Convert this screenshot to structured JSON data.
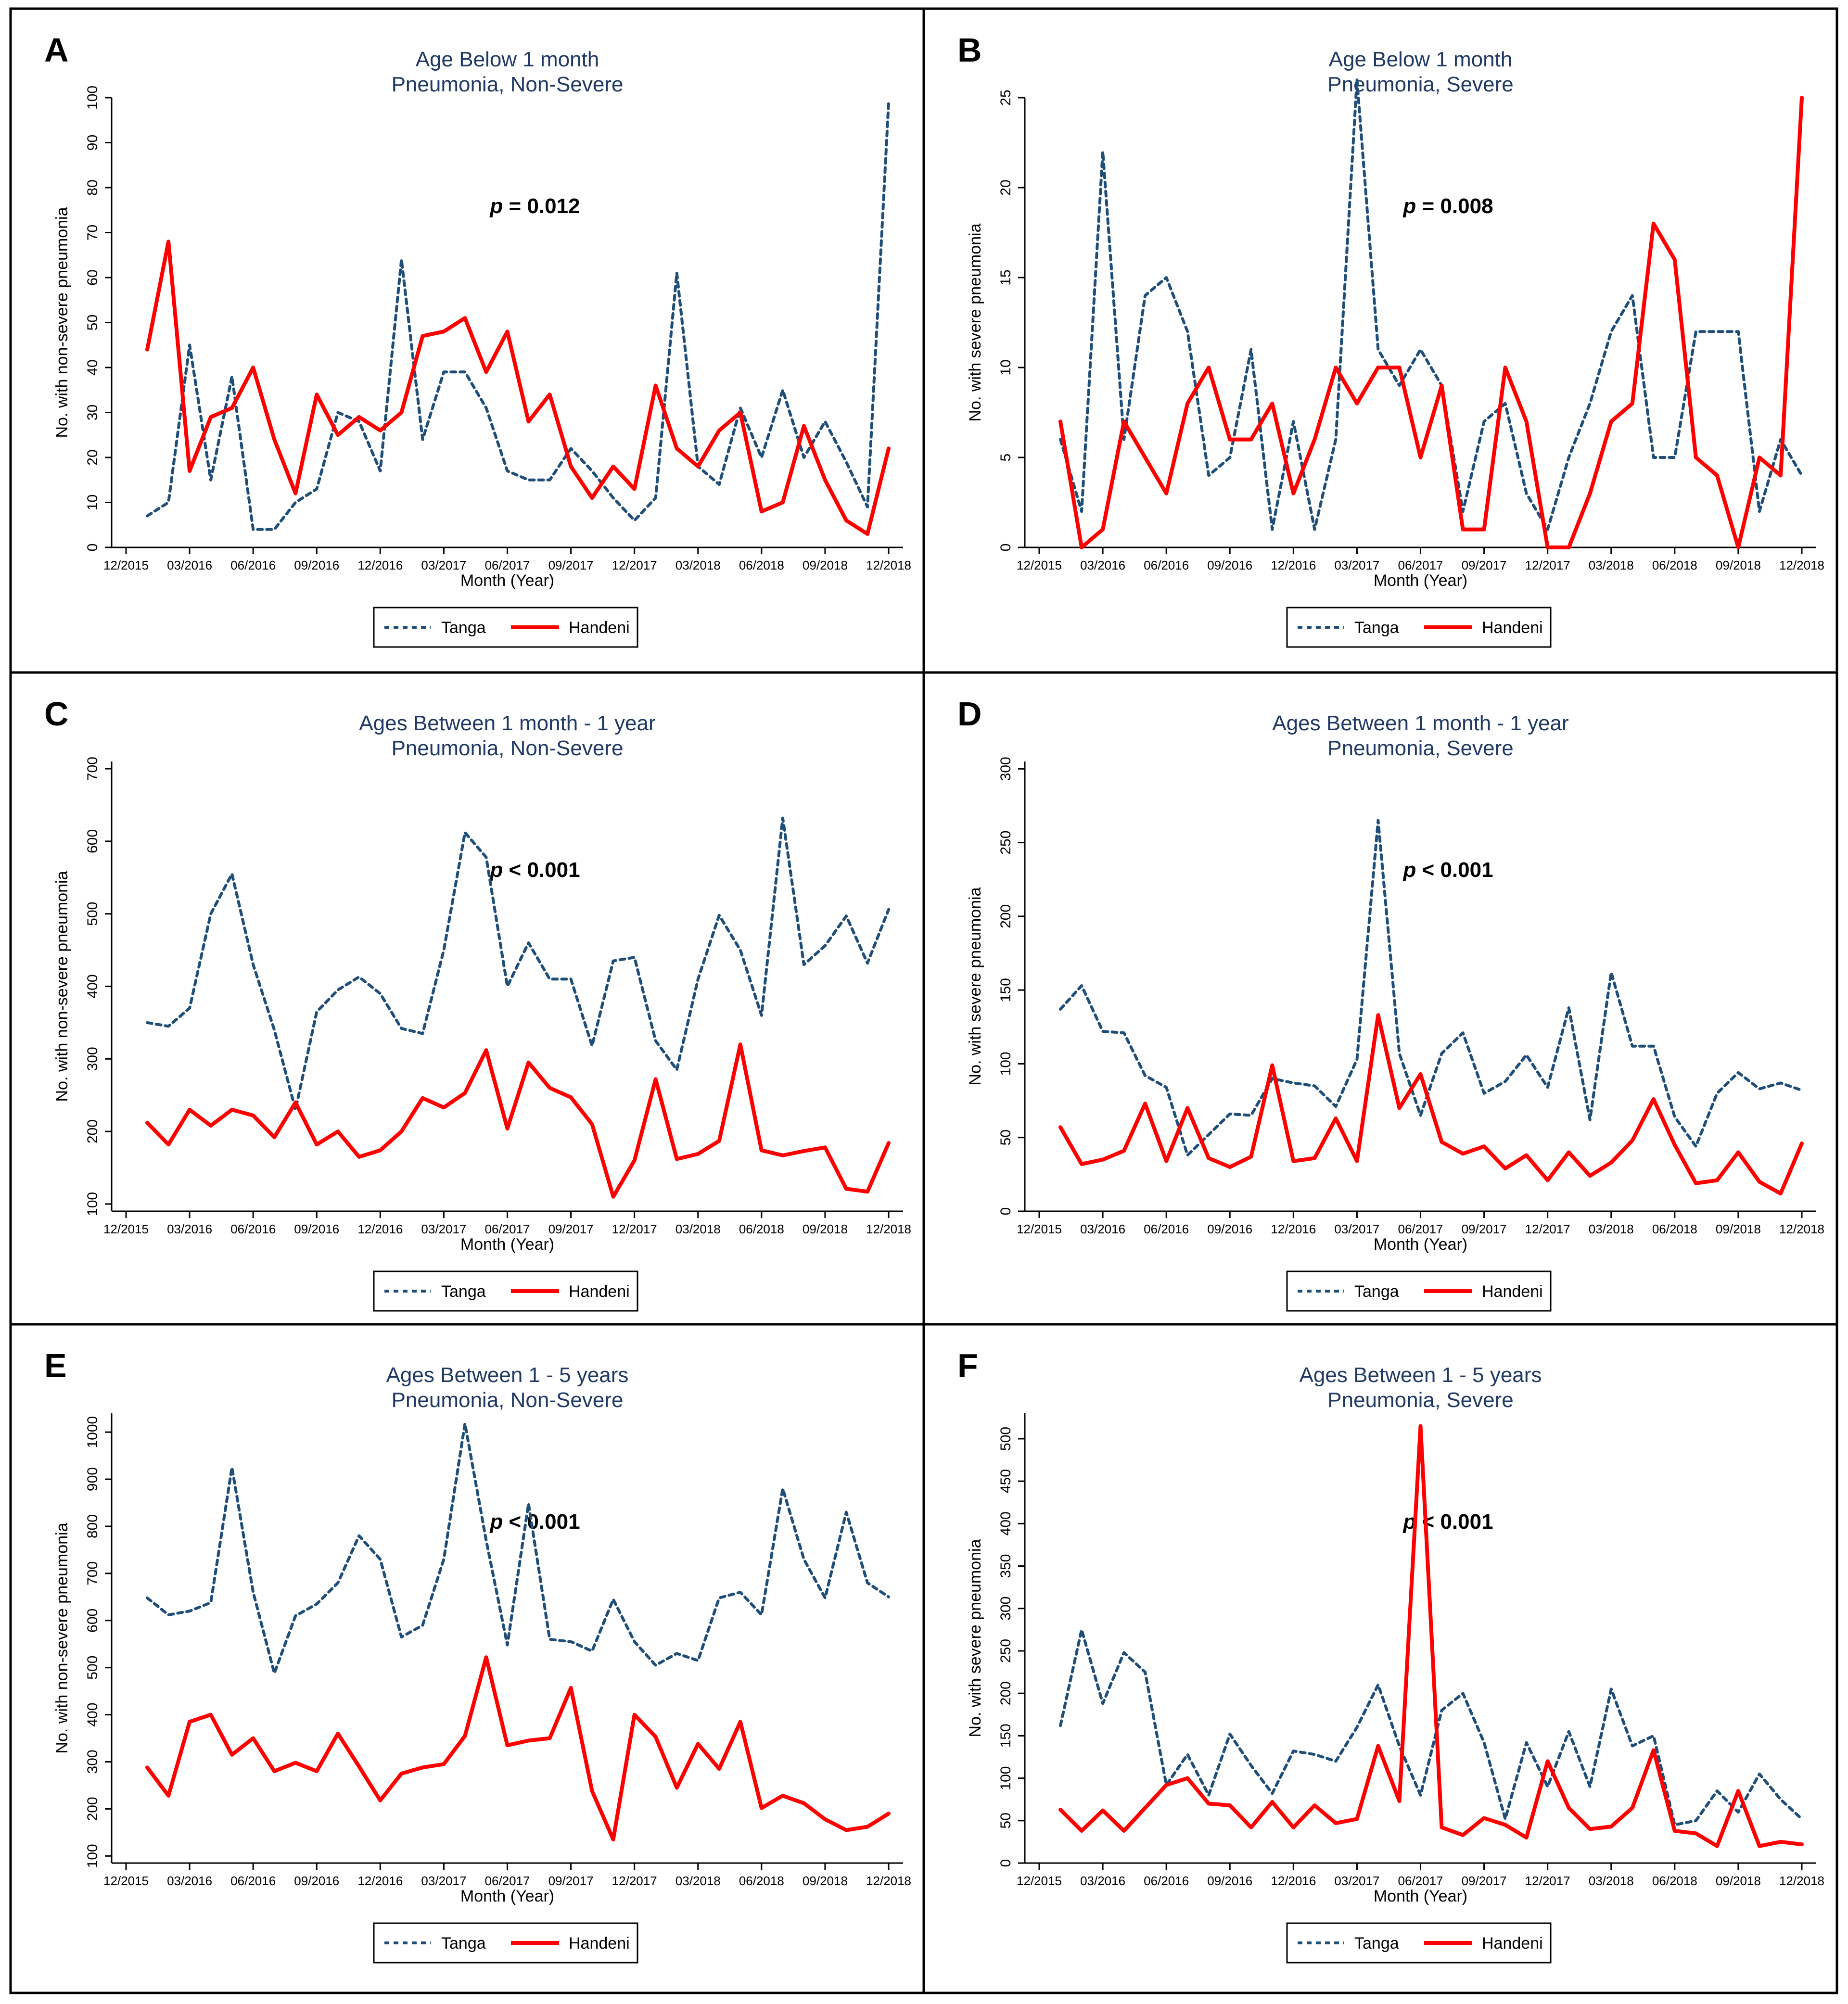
{
  "figure": {
    "x_ticks": [
      "12/2015",
      "03/2016",
      "06/2016",
      "09/2016",
      "12/2016",
      "03/2017",
      "06/2017",
      "09/2017",
      "12/2017",
      "03/2018",
      "06/2018",
      "09/2018",
      "12/2018"
    ],
    "xlabel": "Month (Year)",
    "colors": {
      "tanga": "#1f4e79",
      "handeni": "#ff0000",
      "title": "#1f3864",
      "axis": "#000000",
      "frame": "#000000"
    }
  },
  "chart_data": [
    {
      "panel": "A",
      "type": "line",
      "title_line1": "Age Below 1 month",
      "title_line2": "Pneumonia, Non-Severe",
      "ylabel": "No. with non-severe pneumonia",
      "ylim": [
        0,
        100
      ],
      "yticks": [
        0,
        10,
        20,
        30,
        40,
        50,
        60,
        70,
        80,
        90,
        100
      ],
      "p_label": "p",
      "p_value": " = 0.012",
      "series": [
        {
          "name": "Tanga",
          "values": [
            7,
            10,
            45,
            15,
            38,
            4,
            4,
            10,
            13,
            30,
            28,
            17,
            64,
            24,
            39,
            39,
            31,
            17,
            15,
            15,
            22,
            17,
            11,
            6,
            11,
            61,
            18,
            14,
            31,
            20,
            35,
            20,
            28,
            19,
            9,
            99
          ]
        },
        {
          "name": "Handeni",
          "values": [
            44,
            68,
            17,
            29,
            31,
            40,
            24,
            12,
            34,
            25,
            29,
            26,
            30,
            47,
            48,
            51,
            39,
            48,
            28,
            34,
            18,
            11,
            18,
            13,
            36,
            22,
            18,
            26,
            30,
            8,
            10,
            27,
            15,
            6,
            3,
            22
          ]
        }
      ]
    },
    {
      "panel": "B",
      "type": "line",
      "title_line1": "Age Below 1 month",
      "title_line2": "Pneumonia, Severe",
      "ylabel": "No. with severe pneumonia",
      "ylim": [
        0,
        25
      ],
      "yticks": [
        0,
        5,
        10,
        15,
        20,
        25
      ],
      "p_label": "p",
      "p_value": " = 0.008",
      "series": [
        {
          "name": "Tanga",
          "values": [
            6,
            2,
            22,
            6,
            14,
            15,
            12,
            4,
            5,
            11,
            1,
            7,
            1,
            6,
            26,
            11,
            9,
            11,
            9,
            2,
            7,
            8,
            3,
            1,
            5,
            8,
            12,
            14,
            5,
            5,
            12,
            12,
            12,
            2,
            6,
            4
          ]
        },
        {
          "name": "Handeni",
          "values": [
            7,
            0,
            1,
            7,
            5,
            3,
            8,
            10,
            6,
            6,
            8,
            3,
            6,
            10,
            8,
            10,
            10,
            5,
            9,
            1,
            1,
            10,
            7,
            0,
            0,
            3,
            7,
            8,
            18,
            16,
            5,
            4,
            0,
            5,
            4,
            25
          ]
        }
      ]
    },
    {
      "panel": "C",
      "type": "line",
      "title_line1": "Ages Between 1 month - 1 year",
      "title_line2": "Pneumonia, Non-Severe",
      "ylabel": "No. with non-severe pneumonia",
      "ylim": [
        90,
        710
      ],
      "yticks": [
        100,
        200,
        300,
        400,
        500,
        600,
        700
      ],
      "p_label": "p",
      "p_value": " < 0.001",
      "series": [
        {
          "name": "Tanga",
          "values": [
            350,
            345,
            370,
            500,
            555,
            430,
            340,
            230,
            365,
            395,
            413,
            390,
            342,
            335,
            450,
            612,
            578,
            400,
            460,
            410,
            410,
            318,
            435,
            440,
            325,
            285,
            410,
            498,
            450,
            360,
            632,
            430,
            456,
            497,
            432,
            506
          ]
        },
        {
          "name": "Handeni",
          "values": [
            212,
            182,
            230,
            208,
            230,
            222,
            192,
            240,
            182,
            200,
            165,
            174,
            200,
            246,
            233,
            253,
            312,
            204,
            295,
            260,
            247,
            210,
            110,
            160,
            272,
            162,
            169,
            187,
            320,
            174,
            167,
            173,
            178,
            121,
            117,
            184
          ]
        }
      ]
    },
    {
      "panel": "D",
      "type": "line",
      "title_line1": "Ages Between 1 month - 1 year",
      "title_line2": "Pneumonia, Severe",
      "ylabel": "No. with severe pneumonia",
      "ylim": [
        0,
        305
      ],
      "yticks": [
        0,
        50,
        100,
        150,
        200,
        250,
        300
      ],
      "p_label": "p",
      "p_value": " < 0.001",
      "series": [
        {
          "name": "Tanga",
          "values": [
            137,
            153,
            122,
            121,
            92,
            84,
            38,
            52,
            66,
            65,
            90,
            87,
            85,
            71,
            103,
            265,
            107,
            65,
            107,
            121,
            80,
            88,
            106,
            84,
            138,
            62,
            162,
            112,
            112,
            64,
            44,
            80,
            94,
            83,
            87,
            82
          ]
        },
        {
          "name": "Handeni",
          "values": [
            57,
            32,
            35,
            41,
            73,
            34,
            70,
            36,
            30,
            37,
            99,
            34,
            36,
            63,
            34,
            133,
            70,
            93,
            47,
            39,
            44,
            29,
            38,
            21,
            40,
            24,
            33,
            48,
            76,
            45,
            19,
            21,
            40,
            20,
            12,
            46
          ]
        }
      ]
    },
    {
      "panel": "E",
      "type": "line",
      "title_line1": "Ages Between 1 - 5 years",
      "title_line2": "Pneumonia, Non-Severe",
      "ylabel": "No. with non-severe pneumonia",
      "ylim": [
        85,
        1040
      ],
      "yticks": [
        100,
        200,
        300,
        400,
        500,
        600,
        700,
        800,
        900,
        1000
      ],
      "p_label": "p",
      "p_value": " < 0.001",
      "series": [
        {
          "name": "Tanga",
          "values": [
            648,
            612,
            620,
            638,
            925,
            660,
            488,
            610,
            635,
            680,
            780,
            730,
            565,
            590,
            730,
            1018,
            770,
            548,
            848,
            560,
            555,
            535,
            645,
            555,
            505,
            530,
            515,
            648,
            660,
            612,
            880,
            730,
            648,
            830,
            680,
            650
          ]
        },
        {
          "name": "Handeni",
          "values": [
            288,
            228,
            385,
            400,
            315,
            350,
            280,
            298,
            280,
            360,
            290,
            218,
            275,
            288,
            295,
            355,
            522,
            335,
            345,
            350,
            457,
            238,
            135,
            400,
            353,
            245,
            338,
            285,
            385,
            202,
            228,
            212,
            178,
            155,
            162,
            190
          ]
        }
      ]
    },
    {
      "panel": "F",
      "type": "line",
      "title_line1": "Ages Between 1 - 5 years",
      "title_line2": "Pneumonia, Severe",
      "ylabel": "No. with severe pneumonia",
      "ylim": [
        0,
        530
      ],
      "yticks": [
        0,
        50,
        100,
        150,
        200,
        250,
        300,
        350,
        400,
        450,
        500
      ],
      "p_label": "p",
      "p_value": " < 0.001",
      "series": [
        {
          "name": "Tanga",
          "values": [
            162,
            275,
            188,
            248,
            225,
            92,
            128,
            80,
            152,
            115,
            82,
            132,
            128,
            120,
            160,
            210,
            138,
            80,
            180,
            200,
            142,
            52,
            142,
            90,
            155,
            90,
            205,
            138,
            150,
            45,
            50,
            85,
            60,
            105,
            75,
            52
          ]
        },
        {
          "name": "Handeni",
          "values": [
            63,
            38,
            62,
            38,
            65,
            92,
            100,
            70,
            68,
            42,
            72,
            42,
            68,
            47,
            52,
            138,
            73,
            515,
            42,
            33,
            53,
            45,
            30,
            120,
            65,
            40,
            43,
            65,
            133,
            38,
            35,
            20,
            85,
            20,
            25,
            22
          ]
        }
      ]
    }
  ]
}
